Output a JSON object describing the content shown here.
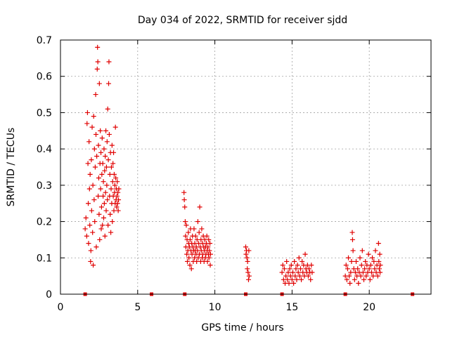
{
  "chart_data": {
    "type": "scatter",
    "title": "Day 034 of 2022, SRMTID for receiver sjdd",
    "xlabel": "GPS time / hours",
    "ylabel": "SRMTID / TECUs",
    "xlim": [
      0,
      24
    ],
    "ylim": [
      0,
      0.7
    ],
    "x_ticks": [
      0,
      5,
      10,
      15,
      20
    ],
    "y_ticks": [
      0,
      0.1,
      0.2,
      0.3,
      0.4,
      0.5,
      0.6,
      0.7
    ],
    "x_tick_labels": [
      "0",
      "5",
      "10",
      "15",
      "20"
    ],
    "y_tick_labels": [
      "0",
      "0.1",
      "0.2",
      "0.3",
      "0.4",
      "0.5",
      "0.6",
      "0.7"
    ],
    "grid": true,
    "marker": "+",
    "color": "#e00000",
    "baseline_markers_x": [
      1.6,
      5.9,
      8.05,
      12.0,
      14.35,
      18.45,
      22.8
    ],
    "series": [
      {
        "name": "SRMTID",
        "points": [
          [
            1.6,
            0.18
          ],
          [
            1.65,
            0.21
          ],
          [
            1.7,
            0.16
          ],
          [
            1.72,
            0.47
          ],
          [
            1.75,
            0.5
          ],
          [
            1.78,
            0.36
          ],
          [
            1.8,
            0.25
          ],
          [
            1.82,
            0.14
          ],
          [
            1.85,
            0.42
          ],
          [
            1.88,
            0.29
          ],
          [
            1.9,
            0.19
          ],
          [
            1.92,
            0.33
          ],
          [
            1.95,
            0.09
          ],
          [
            1.97,
            0.12
          ],
          [
            2.0,
            0.37
          ],
          [
            2.02,
            0.23
          ],
          [
            2.05,
            0.46
          ],
          [
            2.08,
            0.17
          ],
          [
            2.1,
            0.3
          ],
          [
            2.12,
            0.08
          ],
          [
            2.15,
            0.49
          ],
          [
            2.18,
            0.26
          ],
          [
            2.2,
            0.4
          ],
          [
            2.22,
            0.2
          ],
          [
            2.25,
            0.35
          ],
          [
            2.28,
            0.55
          ],
          [
            2.3,
            0.44
          ],
          [
            2.32,
            0.13
          ],
          [
            2.35,
            0.38
          ],
          [
            2.38,
            0.62
          ],
          [
            2.4,
            0.68
          ],
          [
            2.42,
            0.64
          ],
          [
            2.44,
            0.27
          ],
          [
            2.46,
            0.41
          ],
          [
            2.48,
            0.32
          ],
          [
            2.5,
            0.22
          ],
          [
            2.52,
            0.58
          ],
          [
            2.54,
            0.15
          ],
          [
            2.56,
            0.36
          ],
          [
            2.58,
            0.45
          ],
          [
            2.6,
            0.29
          ],
          [
            2.62,
            0.39
          ],
          [
            2.64,
            0.18
          ],
          [
            2.66,
            0.24
          ],
          [
            2.68,
            0.33
          ],
          [
            2.7,
            0.43
          ],
          [
            2.72,
            0.19
          ],
          [
            2.74,
            0.36
          ],
          [
            2.76,
            0.27
          ],
          [
            2.78,
            0.31
          ],
          [
            2.8,
            0.21
          ],
          [
            2.82,
            0.4
          ],
          [
            2.84,
            0.25
          ],
          [
            2.86,
            0.34
          ],
          [
            2.88,
            0.16
          ],
          [
            2.9,
            0.38
          ],
          [
            2.92,
            0.28
          ],
          [
            2.94,
            0.45
          ],
          [
            2.96,
            0.23
          ],
          [
            2.98,
            0.35
          ],
          [
            3.0,
            0.3
          ],
          [
            3.02,
            0.42
          ],
          [
            3.04,
            0.26
          ],
          [
            3.06,
            0.51
          ],
          [
            3.08,
            0.19
          ],
          [
            3.1,
            0.37
          ],
          [
            3.12,
            0.58
          ],
          [
            3.14,
            0.64
          ],
          [
            3.16,
            0.44
          ],
          [
            3.18,
            0.27
          ],
          [
            3.2,
            0.33
          ],
          [
            3.22,
            0.22
          ],
          [
            3.24,
            0.39
          ],
          [
            3.26,
            0.17
          ],
          [
            3.28,
            0.29
          ],
          [
            3.3,
            0.35
          ],
          [
            3.32,
            0.25
          ],
          [
            3.34,
            0.41
          ],
          [
            3.36,
            0.2
          ],
          [
            3.38,
            0.31
          ],
          [
            3.4,
            0.36
          ],
          [
            3.42,
            0.27
          ],
          [
            3.44,
            0.39
          ],
          [
            3.46,
            0.23
          ],
          [
            3.48,
            0.33
          ],
          [
            3.5,
            0.28
          ],
          [
            3.52,
            0.3
          ],
          [
            3.54,
            0.25
          ],
          [
            3.56,
            0.46
          ],
          [
            3.58,
            0.32
          ],
          [
            3.6,
            0.26
          ],
          [
            3.62,
            0.29
          ],
          [
            3.64,
            0.24
          ],
          [
            3.66,
            0.27
          ],
          [
            3.68,
            0.31
          ],
          [
            3.7,
            0.25
          ],
          [
            3.72,
            0.28
          ],
          [
            3.74,
            0.23
          ],
          [
            3.76,
            0.26
          ],
          [
            3.78,
            0.29
          ],
          [
            8.0,
            0.28
          ],
          [
            8.02,
            0.26
          ],
          [
            8.05,
            0.24
          ],
          [
            8.08,
            0.2
          ],
          [
            8.1,
            0.16
          ],
          [
            8.12,
            0.13
          ],
          [
            8.15,
            0.19
          ],
          [
            8.18,
            0.11
          ],
          [
            8.2,
            0.15
          ],
          [
            8.22,
            0.09
          ],
          [
            8.25,
            0.12
          ],
          [
            8.28,
            0.17
          ],
          [
            8.3,
            0.14
          ],
          [
            8.32,
            0.1
          ],
          [
            8.35,
            0.13
          ],
          [
            8.38,
            0.08
          ],
          [
            8.4,
            0.15
          ],
          [
            8.42,
            0.18
          ],
          [
            8.45,
            0.12
          ],
          [
            8.48,
            0.07
          ],
          [
            8.5,
            0.14
          ],
          [
            8.52,
            0.11
          ],
          [
            8.55,
            0.16
          ],
          [
            8.58,
            0.13
          ],
          [
            8.6,
            0.09
          ],
          [
            8.62,
            0.12
          ],
          [
            8.65,
            0.18
          ],
          [
            8.68,
            0.1
          ],
          [
            8.7,
            0.14
          ],
          [
            8.72,
            0.12
          ],
          [
            8.75,
            0.16
          ],
          [
            8.78,
            0.11
          ],
          [
            8.8,
            0.13
          ],
          [
            8.82,
            0.09
          ],
          [
            8.85,
            0.15
          ],
          [
            8.88,
            0.12
          ],
          [
            8.9,
            0.2
          ],
          [
            8.92,
            0.1
          ],
          [
            8.95,
            0.14
          ],
          [
            8.98,
            0.17
          ],
          [
            9.0,
            0.11
          ],
          [
            9.02,
            0.24
          ],
          [
            9.05,
            0.13
          ],
          [
            9.08,
            0.09
          ],
          [
            9.1,
            0.15
          ],
          [
            9.12,
            0.12
          ],
          [
            9.15,
            0.18
          ],
          [
            9.18,
            0.1
          ],
          [
            9.2,
            0.14
          ],
          [
            9.22,
            0.11
          ],
          [
            9.25,
            0.16
          ],
          [
            9.28,
            0.13
          ],
          [
            9.3,
            0.09
          ],
          [
            9.32,
            0.12
          ],
          [
            9.35,
            0.15
          ],
          [
            9.38,
            0.1
          ],
          [
            9.4,
            0.13
          ],
          [
            9.42,
            0.11
          ],
          [
            9.45,
            0.14
          ],
          [
            9.48,
            0.16
          ],
          [
            9.5,
            0.12
          ],
          [
            9.52,
            0.09
          ],
          [
            9.55,
            0.13
          ],
          [
            9.58,
            0.11
          ],
          [
            9.6,
            0.15
          ],
          [
            9.62,
            0.1
          ],
          [
            9.65,
            0.12
          ],
          [
            9.68,
            0.14
          ],
          [
            9.7,
            0.08
          ],
          [
            9.72,
            0.11
          ],
          [
            12.0,
            0.13
          ],
          [
            12.02,
            0.11
          ],
          [
            12.05,
            0.12
          ],
          [
            12.08,
            0.1
          ],
          [
            12.1,
            0.07
          ],
          [
            12.12,
            0.09
          ],
          [
            12.15,
            0.06
          ],
          [
            12.18,
            0.04
          ],
          [
            12.2,
            0.12
          ],
          [
            12.22,
            0.05
          ],
          [
            14.35,
            0.06
          ],
          [
            14.4,
            0.08
          ],
          [
            14.45,
            0.04
          ],
          [
            14.5,
            0.07
          ],
          [
            14.55,
            0.03
          ],
          [
            14.6,
            0.05
          ],
          [
            14.65,
            0.09
          ],
          [
            14.7,
            0.04
          ],
          [
            14.75,
            0.06
          ],
          [
            14.8,
            0.03
          ],
          [
            14.85,
            0.07
          ],
          [
            14.9,
            0.05
          ],
          [
            14.95,
            0.08
          ],
          [
            15.0,
            0.04
          ],
          [
            15.05,
            0.06
          ],
          [
            15.1,
            0.03
          ],
          [
            15.15,
            0.09
          ],
          [
            15.2,
            0.05
          ],
          [
            15.25,
            0.07
          ],
          [
            15.3,
            0.04
          ],
          [
            15.35,
            0.08
          ],
          [
            15.4,
            0.06
          ],
          [
            15.45,
            0.1
          ],
          [
            15.5,
            0.05
          ],
          [
            15.55,
            0.07
          ],
          [
            15.6,
            0.04
          ],
          [
            15.65,
            0.09
          ],
          [
            15.7,
            0.06
          ],
          [
            15.75,
            0.08
          ],
          [
            15.8,
            0.05
          ],
          [
            15.85,
            0.11
          ],
          [
            15.9,
            0.07
          ],
          [
            15.95,
            0.06
          ],
          [
            16.0,
            0.08
          ],
          [
            16.05,
            0.05
          ],
          [
            16.1,
            0.07
          ],
          [
            16.15,
            0.06
          ],
          [
            16.2,
            0.04
          ],
          [
            16.25,
            0.08
          ],
          [
            16.3,
            0.06
          ],
          [
            18.45,
            0.05
          ],
          [
            18.5,
            0.08
          ],
          [
            18.55,
            0.04
          ],
          [
            18.6,
            0.07
          ],
          [
            18.65,
            0.1
          ],
          [
            18.7,
            0.05
          ],
          [
            18.75,
            0.03
          ],
          [
            18.8,
            0.06
          ],
          [
            18.85,
            0.09
          ],
          [
            18.9,
            0.17
          ],
          [
            18.92,
            0.15
          ],
          [
            18.95,
            0.12
          ],
          [
            19.0,
            0.07
          ],
          [
            19.05,
            0.04
          ],
          [
            19.1,
            0.06
          ],
          [
            19.15,
            0.09
          ],
          [
            19.2,
            0.05
          ],
          [
            19.25,
            0.07
          ],
          [
            19.3,
            0.03
          ],
          [
            19.35,
            0.06
          ],
          [
            19.4,
            0.1
          ],
          [
            19.45,
            0.05
          ],
          [
            19.5,
            0.08
          ],
          [
            19.55,
            0.12
          ],
          [
            19.6,
            0.06
          ],
          [
            19.65,
            0.04
          ],
          [
            19.7,
            0.07
          ],
          [
            19.75,
            0.09
          ],
          [
            19.8,
            0.05
          ],
          [
            19.85,
            0.08
          ],
          [
            19.9,
            0.06
          ],
          [
            19.95,
            0.11
          ],
          [
            20.0,
            0.07
          ],
          [
            20.05,
            0.04
          ],
          [
            20.1,
            0.08
          ],
          [
            20.15,
            0.06
          ],
          [
            20.2,
            0.1
          ],
          [
            20.25,
            0.05
          ],
          [
            20.3,
            0.09
          ],
          [
            20.35,
            0.07
          ],
          [
            20.4,
            0.12
          ],
          [
            20.45,
            0.06
          ],
          [
            20.5,
            0.08
          ],
          [
            20.55,
            0.05
          ],
          [
            20.6,
            0.14
          ],
          [
            20.62,
            0.09
          ],
          [
            20.65,
            0.07
          ],
          [
            20.68,
            0.11
          ],
          [
            20.7,
            0.06
          ],
          [
            20.72,
            0.08
          ]
        ]
      }
    ]
  }
}
